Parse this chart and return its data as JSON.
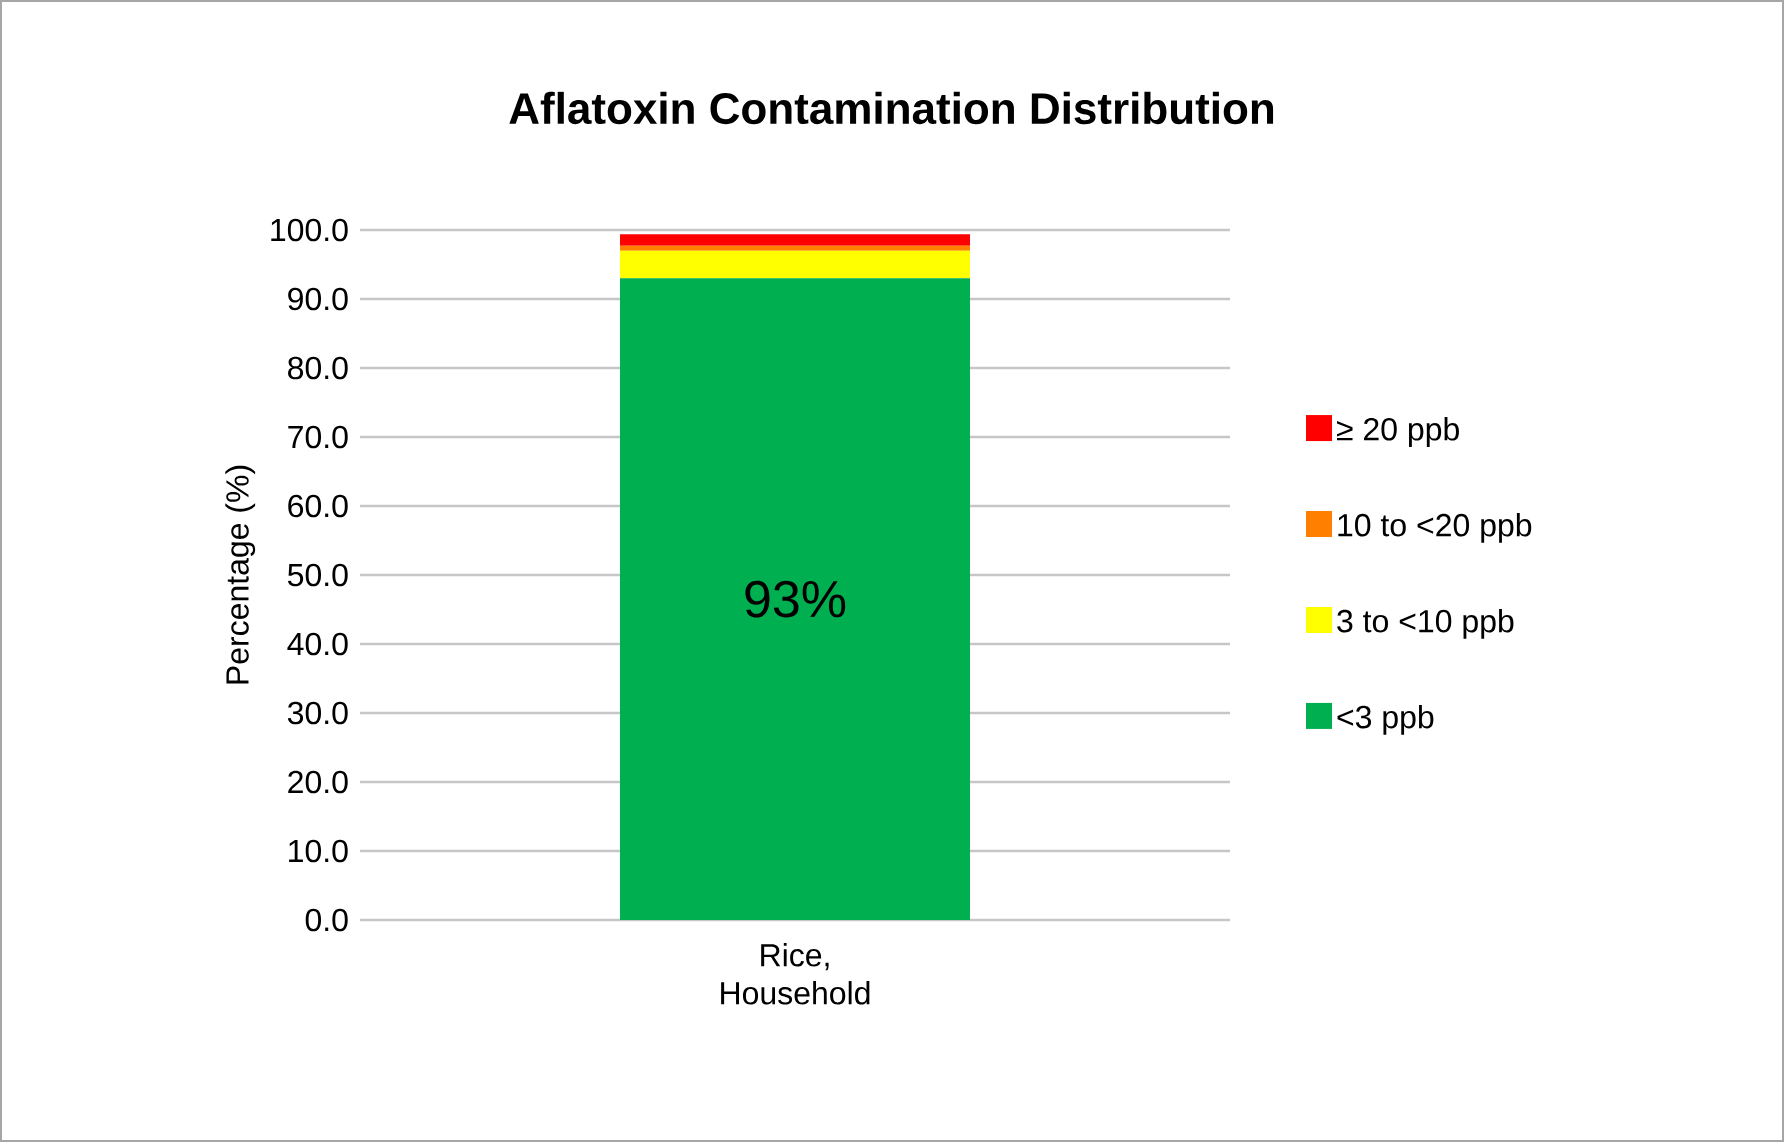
{
  "chart_data": {
    "type": "bar",
    "stacked": true,
    "title": "Aflatoxin Contamination Distribution",
    "ylabel": "Percentage (%)",
    "categories": [
      "Rice,\nHousehold"
    ],
    "series": [
      {
        "name": "<3 ppb",
        "color": "#00b050",
        "values": [
          93
        ],
        "value_labels": [
          "93%"
        ]
      },
      {
        "name": "3 to <10 ppb",
        "color": "#ffff00",
        "values": [
          4
        ]
      },
      {
        "name": "10 to <20 ppb",
        "color": "#ff7f00",
        "values": [
          0.7
        ]
      },
      {
        "name": "≥ 20 ppb",
        "color": "#ff0000",
        "values": [
          1.7
        ]
      }
    ],
    "ylim": [
      0,
      100
    ],
    "yticks": [
      {
        "value": 0,
        "label": "0.0"
      },
      {
        "value": 10,
        "label": "10.0"
      },
      {
        "value": 20,
        "label": "20.0"
      },
      {
        "value": 30,
        "label": "30.0"
      },
      {
        "value": 40,
        "label": "40.0"
      },
      {
        "value": 50,
        "label": "50.0"
      },
      {
        "value": 60,
        "label": "60.0"
      },
      {
        "value": 70,
        "label": "70.0"
      },
      {
        "value": 80,
        "label": "80.0"
      },
      {
        "value": 90,
        "label": "90.0"
      },
      {
        "value": 100,
        "label": "100.0"
      }
    ],
    "grid": "y",
    "legend": "right"
  }
}
